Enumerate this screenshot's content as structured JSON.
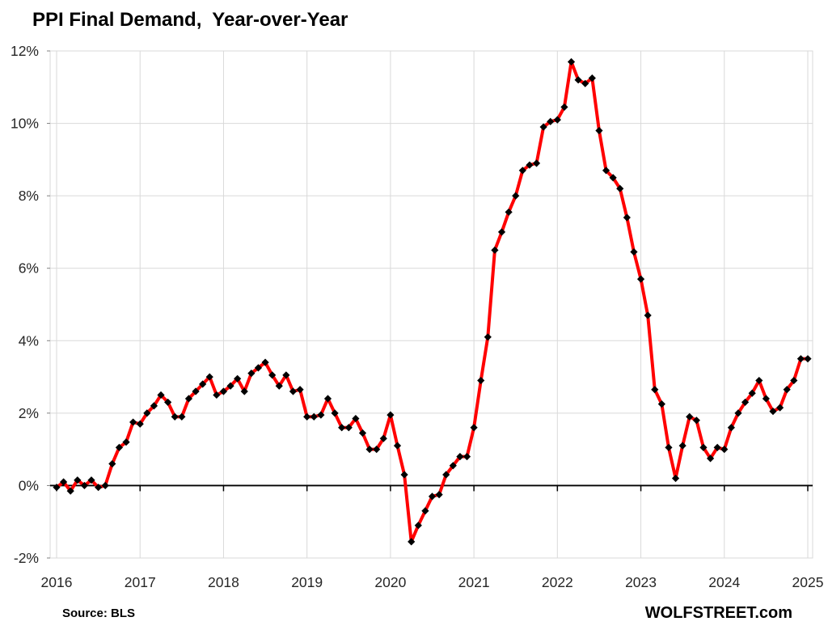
{
  "title": "PPI Final Demand,  Year-over-Year",
  "source_label": "Source: BLS",
  "brand": "WOLFSTREET.com",
  "chart_data": {
    "type": "line",
    "title": "PPI Final Demand,  Year-over-Year",
    "xlabel": "",
    "ylabel": "",
    "grid": true,
    "legend": false,
    "line_color": "#FF0000",
    "marker": "diamond",
    "marker_color": "#000000",
    "gridline_color": "#D9D9D9",
    "zero_axis_color": "#000000",
    "tick_label_color": "#262626",
    "ylim": [
      -2,
      12
    ],
    "y_tick_step": 2,
    "y_tick_labels": [
      "12%",
      "10%",
      "8%",
      "6%",
      "4%",
      "2%",
      "0%",
      "-2%"
    ],
    "x_tick_labels": [
      "2016",
      "2017",
      "2018",
      "2019",
      "2020",
      "2021",
      "2022",
      "2023",
      "2024",
      "2025"
    ],
    "series": [
      {
        "name": "PPI Final Demand, Year-over-Year, percent",
        "start": "2016-01",
        "end": "2025-01",
        "freq": "monthly",
        "values": [
          -0.05,
          0.1,
          -0.15,
          0.15,
          0.0,
          0.15,
          -0.05,
          0.0,
          0.6,
          1.05,
          1.2,
          1.75,
          1.7,
          2.0,
          2.2,
          2.5,
          2.3,
          1.9,
          1.9,
          2.4,
          2.6,
          2.8,
          3.0,
          2.5,
          2.6,
          2.75,
          2.95,
          2.6,
          3.1,
          3.25,
          3.4,
          3.05,
          2.75,
          3.05,
          2.6,
          2.65,
          1.9,
          1.9,
          1.95,
          2.4,
          2.0,
          1.6,
          1.6,
          1.85,
          1.45,
          1.0,
          1.0,
          1.3,
          1.95,
          1.1,
          0.3,
          -1.55,
          -1.1,
          -0.7,
          -0.3,
          -0.25,
          0.3,
          0.55,
          0.8,
          0.8,
          1.6,
          2.9,
          4.1,
          6.5,
          7.0,
          7.55,
          8.0,
          8.7,
          8.85,
          8.9,
          9.9,
          10.05,
          10.1,
          10.45,
          11.7,
          11.2,
          11.1,
          11.25,
          9.8,
          8.7,
          8.5,
          8.2,
          7.4,
          6.45,
          5.7,
          4.7,
          2.65,
          2.25,
          1.05,
          0.2,
          1.1,
          1.9,
          1.8,
          1.05,
          0.75,
          1.05,
          1.0,
          1.6,
          2.0,
          2.3,
          2.55,
          2.9,
          2.4,
          2.05,
          2.15,
          2.65,
          2.9,
          3.5,
          3.5
        ]
      }
    ]
  }
}
